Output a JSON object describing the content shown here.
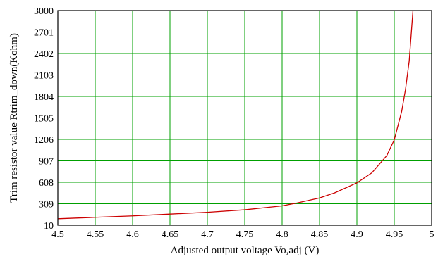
{
  "chart_data": {
    "type": "line",
    "title": "",
    "xlabel": "Adjusted output voltage Vo,adj (V)",
    "ylabel": "Trim resistor value Rtrim_down(Kohm)",
    "xlim": [
      4.5,
      5
    ],
    "ylim": [
      10,
      3000
    ],
    "x_ticks": [
      4.5,
      4.55,
      4.6,
      4.65,
      4.7,
      4.75,
      4.8,
      4.85,
      4.9,
      4.95,
      5
    ],
    "x_tick_labels": [
      "4.5",
      "4.55",
      "4.6",
      "4.65",
      "4.7",
      "4.75",
      "4.8",
      "4.85",
      "4.9",
      "4.95",
      "5"
    ],
    "y_ticks": [
      10,
      309,
      608,
      907,
      1206,
      1505,
      1804,
      2103,
      2402,
      2701,
      3000
    ],
    "y_tick_labels": [
      "10",
      "309",
      "608",
      "907",
      "1206",
      "1505",
      "1804",
      "2103",
      "2402",
      "2701",
      "3000"
    ],
    "grid": true,
    "colors": {
      "grid": "#00a000",
      "line": "#cc0000",
      "frame": "#000000"
    },
    "series": [
      {
        "values_x": [
          4.5,
          4.55,
          4.6,
          4.65,
          4.7,
          4.75,
          4.8,
          4.82,
          4.85,
          4.87,
          4.9,
          4.92,
          4.94,
          4.95,
          4.96,
          4.965,
          4.97,
          4.975
        ],
        "values_y": [
          100,
          120,
          140,
          165,
          190,
          225,
          280,
          320,
          390,
          460,
          600,
          740,
          980,
          1200,
          1600,
          1900,
          2300,
          3000
        ]
      }
    ]
  }
}
